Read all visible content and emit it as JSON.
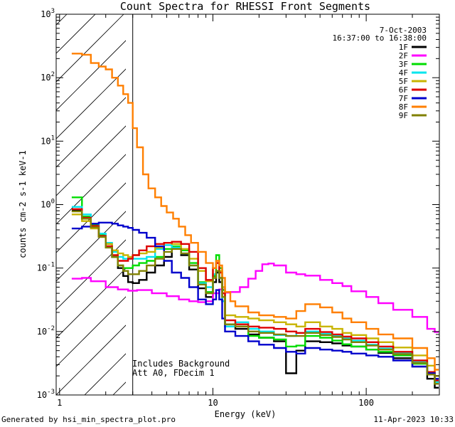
{
  "footer": {
    "generated_by": "Generated by hsi_min_spectra_plot.pro",
    "timestamp": "11-Apr-2023 10:33"
  },
  "chart_data": {
    "type": "line",
    "title": "Count Spectra for RHESSI Front Segments",
    "xlabel": "Energy (keV)",
    "ylabel": "counts cm-2 s-1 keV-1",
    "xscale": "log",
    "yscale": "log",
    "xlim": [
      0.95,
      300
    ],
    "ylim": [
      0.001,
      1000
    ],
    "x_tick_labels": [
      "1",
      "10",
      "100"
    ],
    "y_tick_labels": [
      "10",
      "10",
      "10",
      "10",
      "10",
      "10",
      "10"
    ],
    "y_tick_exponents": [
      "-3",
      "-2",
      "-1",
      "0",
      "1",
      "2",
      "3"
    ],
    "info": {
      "date": "7-Oct-2003",
      "time_range": "16:37:00 to 16:38:00",
      "legend_position": "top-right"
    },
    "annotations": [
      "Includes Background",
      "Att A0, FDecim 1"
    ],
    "hatched_region": {
      "from_keV": 0.95,
      "to_keV": 3.0
    },
    "series": [
      {
        "name": "1F",
        "color": "#000000",
        "x": [
          1.2,
          1.4,
          1.6,
          1.8,
          2.0,
          2.2,
          2.4,
          2.6,
          2.8,
          3.0,
          3.3,
          3.7,
          4.2,
          4.8,
          5.4,
          6.2,
          7.0,
          8.0,
          9.0,
          10.0,
          10.5,
          11.0,
          11.5,
          12.0,
          14,
          17,
          20,
          25,
          30,
          35,
          40,
          50,
          60,
          70,
          80,
          100,
          120,
          150,
          200,
          250,
          280
        ],
        "y": [
          0.8,
          0.6,
          0.45,
          0.32,
          0.22,
          0.15,
          0.1,
          0.075,
          0.06,
          0.058,
          0.065,
          0.085,
          0.11,
          0.15,
          0.2,
          0.16,
          0.095,
          0.048,
          0.035,
          0.06,
          0.085,
          0.06,
          0.03,
          0.012,
          0.011,
          0.009,
          0.008,
          0.007,
          0.0022,
          0.005,
          0.007,
          0.0068,
          0.0065,
          0.006,
          0.0058,
          0.0052,
          0.0046,
          0.0038,
          0.0028,
          0.0018,
          0.0013
        ]
      },
      {
        "name": "2F",
        "color": "#ff00ff",
        "x": [
          1.2,
          1.4,
          1.6,
          2.0,
          2.4,
          2.8,
          3.2,
          4.0,
          5.0,
          6.0,
          7.0,
          8.0,
          9.0,
          10.0,
          11.0,
          12.0,
          13.0,
          15.0,
          17.0,
          19.0,
          21.0,
          23.0,
          25.0,
          30.0,
          35.0,
          40.0,
          50.0,
          60.0,
          70.0,
          80.0,
          100.0,
          120.0,
          150.0,
          200.0,
          250.0,
          280.0
        ],
        "y": [
          0.068,
          0.07,
          0.062,
          0.05,
          0.046,
          0.044,
          0.045,
          0.04,
          0.036,
          0.032,
          0.03,
          0.029,
          0.03,
          0.04,
          0.046,
          0.041,
          0.042,
          0.05,
          0.068,
          0.09,
          0.115,
          0.118,
          0.11,
          0.085,
          0.08,
          0.076,
          0.065,
          0.058,
          0.052,
          0.043,
          0.035,
          0.028,
          0.022,
          0.017,
          0.011,
          0.0098
        ]
      },
      {
        "name": "3F",
        "color": "#00dd00",
        "x": [
          1.2,
          1.4,
          1.6,
          1.8,
          2.0,
          2.2,
          2.4,
          2.6,
          2.8,
          3.0,
          3.3,
          3.7,
          4.2,
          4.8,
          5.4,
          6.2,
          7.0,
          8.0,
          9.0,
          10.0,
          10.5,
          11.0,
          11.5,
          12.0,
          14,
          17,
          20,
          25,
          30,
          35,
          40,
          50,
          60,
          70,
          80,
          100,
          120,
          150,
          200,
          250,
          280
        ],
        "y": [
          1.3,
          0.65,
          0.48,
          0.33,
          0.22,
          0.15,
          0.11,
          0.1,
          0.1,
          0.11,
          0.12,
          0.13,
          0.15,
          0.2,
          0.22,
          0.19,
          0.12,
          0.06,
          0.042,
          0.075,
          0.16,
          0.1,
          0.045,
          0.013,
          0.012,
          0.0085,
          0.008,
          0.0075,
          0.0058,
          0.006,
          0.0085,
          0.008,
          0.0072,
          0.0063,
          0.0058,
          0.0052,
          0.0048,
          0.0042,
          0.0031,
          0.0021,
          0.0015
        ]
      },
      {
        "name": "4F",
        "color": "#00e5ee",
        "x": [
          1.2,
          1.4,
          1.6,
          1.8,
          2.0,
          2.2,
          2.4,
          2.6,
          2.8,
          3.0,
          3.3,
          3.7,
          4.2,
          4.8,
          5.4,
          6.2,
          7.0,
          8.0,
          9.0,
          10.0,
          10.5,
          11.0,
          11.5,
          12.0,
          14,
          17,
          20,
          25,
          30,
          35,
          40,
          50,
          60,
          70,
          80,
          100,
          120,
          150,
          200,
          250,
          280
        ],
        "y": [
          0.92,
          0.7,
          0.5,
          0.35,
          0.25,
          0.18,
          0.15,
          0.14,
          0.14,
          0.14,
          0.14,
          0.15,
          0.2,
          0.23,
          0.21,
          0.17,
          0.11,
          0.058,
          0.05,
          0.08,
          0.09,
          0.07,
          0.03,
          0.012,
          0.014,
          0.011,
          0.01,
          0.0088,
          0.0085,
          0.0095,
          0.01,
          0.0092,
          0.0086,
          0.0078,
          0.0072,
          0.0062,
          0.0054,
          0.0046,
          0.0033,
          0.0022,
          0.0016
        ]
      },
      {
        "name": "5F",
        "color": "#c8b400",
        "x": [
          1.2,
          1.4,
          1.6,
          1.8,
          2.0,
          2.2,
          2.4,
          2.6,
          2.8,
          3.0,
          3.3,
          3.7,
          4.2,
          4.8,
          5.4,
          6.2,
          7.0,
          8.0,
          9.0,
          10.0,
          10.5,
          11.0,
          11.5,
          12.0,
          14,
          17,
          20,
          25,
          30,
          35,
          40,
          50,
          60,
          70,
          80,
          100,
          120,
          150,
          200,
          250,
          280
        ],
        "y": [
          0.7,
          0.55,
          0.42,
          0.31,
          0.24,
          0.19,
          0.17,
          0.16,
          0.15,
          0.16,
          0.17,
          0.18,
          0.21,
          0.25,
          0.24,
          0.2,
          0.14,
          0.09,
          0.062,
          0.1,
          0.12,
          0.09,
          0.05,
          0.018,
          0.017,
          0.016,
          0.015,
          0.014,
          0.013,
          0.012,
          0.014,
          0.012,
          0.011,
          0.0095,
          0.0088,
          0.0078,
          0.0068,
          0.0056,
          0.0042,
          0.0029,
          0.002
        ]
      },
      {
        "name": "6F",
        "color": "#dd0000",
        "x": [
          1.2,
          1.4,
          1.6,
          1.8,
          2.0,
          2.2,
          2.4,
          2.6,
          2.8,
          3.0,
          3.3,
          3.7,
          4.2,
          4.8,
          5.4,
          6.2,
          7.0,
          8.0,
          9.0,
          10.0,
          10.5,
          11.0,
          11.5,
          12.0,
          14,
          17,
          20,
          25,
          30,
          35,
          40,
          50,
          60,
          70,
          80,
          100,
          120,
          150,
          200,
          250,
          280
        ],
        "y": [
          0.85,
          0.62,
          0.46,
          0.32,
          0.22,
          0.16,
          0.13,
          0.13,
          0.14,
          0.16,
          0.19,
          0.22,
          0.24,
          0.25,
          0.26,
          0.24,
          0.18,
          0.1,
          0.065,
          0.1,
          0.12,
          0.085,
          0.04,
          0.015,
          0.013,
          0.012,
          0.0115,
          0.011,
          0.01,
          0.0095,
          0.011,
          0.0098,
          0.009,
          0.0083,
          0.0078,
          0.0068,
          0.0058,
          0.0048,
          0.0035,
          0.0023,
          0.0017
        ]
      },
      {
        "name": "7F",
        "color": "#0000cc",
        "x": [
          1.2,
          1.4,
          1.6,
          1.8,
          2.0,
          2.2,
          2.4,
          2.6,
          2.8,
          3.0,
          3.3,
          3.7,
          4.2,
          4.8,
          5.4,
          6.2,
          7.0,
          8.0,
          9.0,
          10.0,
          10.5,
          11.0,
          11.5,
          12.0,
          14,
          17,
          20,
          25,
          30,
          35,
          40,
          50,
          60,
          70,
          80,
          100,
          120,
          150,
          200,
          250,
          280
        ],
        "y": [
          0.42,
          0.45,
          0.5,
          0.52,
          0.52,
          0.5,
          0.47,
          0.45,
          0.43,
          0.4,
          0.36,
          0.3,
          0.22,
          0.13,
          0.085,
          0.07,
          0.05,
          0.032,
          0.027,
          0.032,
          0.045,
          0.032,
          0.016,
          0.01,
          0.0085,
          0.007,
          0.0062,
          0.0055,
          0.0048,
          0.0045,
          0.0055,
          0.0052,
          0.005,
          0.0048,
          0.0045,
          0.0042,
          0.004,
          0.0035,
          0.0028,
          0.0022,
          0.0018
        ]
      },
      {
        "name": "8F",
        "color": "#ff7f00",
        "x": [
          1.2,
          1.4,
          1.6,
          1.8,
          2.0,
          2.2,
          2.4,
          2.6,
          2.8,
          3.0,
          3.2,
          3.5,
          3.8,
          4.2,
          4.6,
          5.0,
          5.5,
          6.0,
          6.6,
          7.2,
          8.0,
          9.0,
          10.0,
          10.5,
          11.0,
          11.5,
          12.0,
          13.0,
          14,
          17,
          20,
          25,
          30,
          35,
          40,
          50,
          60,
          70,
          80,
          100,
          120,
          150,
          200,
          250,
          280
        ],
        "y": [
          240,
          230,
          170,
          150,
          135,
          100,
          75,
          55,
          40,
          16,
          8,
          3.0,
          1.8,
          1.3,
          0.95,
          0.75,
          0.6,
          0.45,
          0.33,
          0.25,
          0.18,
          0.12,
          0.1,
          0.13,
          0.11,
          0.07,
          0.042,
          0.03,
          0.025,
          0.02,
          0.018,
          0.017,
          0.016,
          0.021,
          0.027,
          0.024,
          0.02,
          0.016,
          0.014,
          0.011,
          0.009,
          0.0078,
          0.0055,
          0.0038,
          0.0025
        ]
      },
      {
        "name": "9F",
        "color": "#808000",
        "x": [
          1.2,
          1.4,
          1.6,
          1.8,
          2.0,
          2.2,
          2.4,
          2.6,
          2.8,
          3.0,
          3.3,
          3.7,
          4.2,
          4.8,
          5.4,
          6.2,
          7.0,
          8.0,
          9.0,
          10.0,
          10.5,
          11.0,
          11.5,
          12.0,
          14,
          17,
          20,
          25,
          30,
          35,
          40,
          50,
          60,
          70,
          80,
          100,
          120,
          150,
          200,
          250,
          280
        ],
        "y": [
          0.78,
          0.6,
          0.44,
          0.31,
          0.21,
          0.15,
          0.11,
          0.09,
          0.08,
          0.08,
          0.09,
          0.11,
          0.14,
          0.18,
          0.2,
          0.17,
          0.11,
          0.055,
          0.04,
          0.07,
          0.09,
          0.07,
          0.035,
          0.013,
          0.012,
          0.01,
          0.0095,
          0.009,
          0.0085,
          0.0085,
          0.0095,
          0.0088,
          0.0082,
          0.0075,
          0.0068,
          0.006,
          0.0052,
          0.0044,
          0.0032,
          0.0021,
          0.0015
        ]
      }
    ]
  }
}
